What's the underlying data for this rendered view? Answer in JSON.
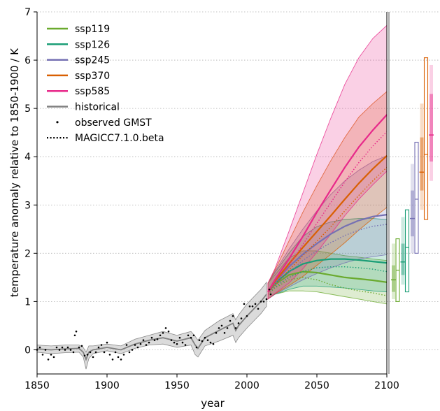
{
  "chart_data": {
    "type": "line",
    "xlabel": "year",
    "ylabel": "temperature anomaly relative to 1850-1900 / K",
    "xlim": [
      1850,
      2100
    ],
    "ylim": [
      -0.5,
      7
    ],
    "xticks": [
      "1850",
      "1900",
      "1950",
      "2000",
      "2050",
      "2100"
    ],
    "yticks": [
      "0",
      "1",
      "2",
      "3",
      "4",
      "5",
      "6",
      "7"
    ],
    "grid": "horizontal-dotted",
    "legend_position": "top-left",
    "legend": [
      {
        "label": "ssp119",
        "style": "line",
        "color": "#6aaa2e"
      },
      {
        "label": "ssp126",
        "style": "line",
        "color": "#1b9e77"
      },
      {
        "label": "ssp245",
        "style": "line",
        "color": "#7570b3"
      },
      {
        "label": "ssp370",
        "style": "line",
        "color": "#d95f02"
      },
      {
        "label": "ssp585",
        "style": "line",
        "color": "#e7298a"
      },
      {
        "label": "historical",
        "style": "line",
        "color": "#808080"
      },
      {
        "label": "observed GMST",
        "style": "dot",
        "color": "#000000"
      },
      {
        "label": "MAGICC7.1.0.beta",
        "style": "dotted",
        "color": "#000000"
      }
    ],
    "historical": {
      "color": "#808080",
      "x": [
        1850,
        1860,
        1870,
        1880,
        1883,
        1885,
        1887,
        1890,
        1900,
        1910,
        1920,
        1930,
        1940,
        1950,
        1960,
        1963,
        1965,
        1970,
        1980,
        1990,
        1992,
        1994,
        2000,
        2005,
        2010,
        2014
      ],
      "median": [
        0.02,
        0.0,
        0.02,
        0.03,
        -0.05,
        -0.2,
        -0.05,
        0.0,
        0.05,
        0.0,
        0.12,
        0.2,
        0.25,
        0.18,
        0.25,
        0.1,
        0.03,
        0.25,
        0.4,
        0.55,
        0.4,
        0.5,
        0.7,
        0.85,
        1.0,
        1.15
      ],
      "lower": [
        -0.05,
        -0.08,
        -0.06,
        -0.05,
        -0.15,
        -0.4,
        -0.18,
        -0.08,
        -0.02,
        -0.08,
        0.03,
        0.1,
        0.12,
        0.05,
        0.1,
        -0.1,
        -0.15,
        0.08,
        0.18,
        0.3,
        0.15,
        0.25,
        0.45,
        0.6,
        0.75,
        0.9
      ],
      "upper": [
        0.1,
        0.08,
        0.1,
        0.1,
        0.05,
        -0.05,
        0.08,
        0.08,
        0.12,
        0.08,
        0.22,
        0.3,
        0.38,
        0.3,
        0.38,
        0.28,
        0.2,
        0.4,
        0.6,
        0.75,
        0.62,
        0.72,
        0.95,
        1.1,
        1.25,
        1.4
      ]
    },
    "observed_gmst": {
      "x": [
        1850,
        1852,
        1854,
        1856,
        1858,
        1860,
        1862,
        1864,
        1866,
        1868,
        1870,
        1872,
        1874,
        1876,
        1877,
        1878,
        1880,
        1882,
        1884,
        1886,
        1888,
        1890,
        1892,
        1894,
        1896,
        1898,
        1900,
        1902,
        1904,
        1906,
        1908,
        1910,
        1912,
        1914,
        1916,
        1918,
        1920,
        1922,
        1924,
        1926,
        1928,
        1930,
        1932,
        1934,
        1936,
        1938,
        1940,
        1942,
        1944,
        1946,
        1948,
        1950,
        1952,
        1954,
        1956,
        1958,
        1960,
        1962,
        1964,
        1966,
        1968,
        1970,
        1972,
        1974,
        1976,
        1978,
        1980,
        1982,
        1984,
        1986,
        1988,
        1990,
        1992,
        1994,
        1996,
        1998,
        2000,
        2002,
        2004,
        2006,
        2008,
        2010,
        2012,
        2014,
        2016,
        2017
      ],
      "y": [
        0.0,
        0.05,
        -0.1,
        0.0,
        -0.2,
        -0.1,
        -0.15,
        0.05,
        0.0,
        0.05,
        0.0,
        0.05,
        0.0,
        -0.05,
        0.3,
        0.38,
        0.05,
        0.08,
        -0.12,
        -0.1,
        -0.05,
        -0.15,
        -0.05,
        0.05,
        0.1,
        -0.05,
        0.15,
        -0.1,
        -0.2,
        -0.05,
        -0.15,
        -0.2,
        -0.1,
        0.1,
        -0.05,
        0.0,
        0.1,
        0.05,
        0.12,
        0.2,
        0.1,
        0.15,
        0.25,
        0.2,
        0.22,
        0.3,
        0.35,
        0.45,
        0.38,
        0.2,
        0.15,
        0.12,
        0.25,
        0.15,
        0.1,
        0.3,
        0.25,
        0.3,
        0.05,
        0.2,
        0.18,
        0.25,
        0.2,
        0.15,
        0.12,
        0.35,
        0.45,
        0.5,
        0.35,
        0.45,
        0.6,
        0.7,
        0.45,
        0.55,
        0.65,
        0.95,
        0.7,
        0.9,
        0.9,
        0.95,
        0.85,
        1.0,
        1.0,
        1.05,
        1.25,
        1.15
      ]
    },
    "scenarios_x": [
      2015,
      2020,
      2030,
      2040,
      2050,
      2060,
      2070,
      2080,
      2090,
      2100
    ],
    "series": [
      {
        "name": "ssp119",
        "color": "#6aaa2e",
        "median": [
          1.2,
          1.35,
          1.55,
          1.62,
          1.6,
          1.55,
          1.5,
          1.47,
          1.44,
          1.4
        ],
        "lower": [
          1.05,
          1.15,
          1.22,
          1.22,
          1.2,
          1.15,
          1.1,
          1.05,
          1.0,
          0.95
        ],
        "upper": [
          1.38,
          1.55,
          1.9,
          2.05,
          2.05,
          2.0,
          1.95,
          1.92,
          1.88,
          1.85
        ],
        "magicc": [
          1.15,
          1.28,
          1.45,
          1.5,
          1.45,
          1.35,
          1.28,
          1.22,
          1.18,
          1.12
        ]
      },
      {
        "name": "ssp126",
        "color": "#1b9e77",
        "median": [
          1.2,
          1.38,
          1.62,
          1.78,
          1.85,
          1.88,
          1.88,
          1.86,
          1.83,
          1.8
        ],
        "lower": [
          1.05,
          1.15,
          1.25,
          1.32,
          1.32,
          1.3,
          1.28,
          1.25,
          1.22,
          1.2
        ],
        "upper": [
          1.38,
          1.6,
          2.0,
          2.35,
          2.55,
          2.65,
          2.7,
          2.72,
          2.72,
          2.7
        ],
        "magicc": [
          1.15,
          1.3,
          1.5,
          1.62,
          1.7,
          1.72,
          1.72,
          1.7,
          1.67,
          1.62
        ]
      },
      {
        "name": "ssp245",
        "color": "#7570b3",
        "median": [
          1.2,
          1.4,
          1.72,
          1.98,
          2.2,
          2.4,
          2.56,
          2.68,
          2.76,
          2.8
        ],
        "lower": [
          1.05,
          1.15,
          1.3,
          1.45,
          1.58,
          1.7,
          1.8,
          1.88,
          1.93,
          1.97
        ],
        "upper": [
          1.38,
          1.62,
          2.08,
          2.5,
          2.88,
          3.22,
          3.5,
          3.72,
          3.9,
          4.02
        ],
        "magicc": [
          1.15,
          1.32,
          1.6,
          1.85,
          2.05,
          2.22,
          2.37,
          2.48,
          2.56,
          2.6
        ]
      },
      {
        "name": "ssp370",
        "color": "#d95f02",
        "median": [
          1.2,
          1.42,
          1.78,
          2.12,
          2.45,
          2.78,
          3.12,
          3.45,
          3.75,
          4.02
        ],
        "lower": [
          1.05,
          1.16,
          1.33,
          1.52,
          1.75,
          1.98,
          2.22,
          2.48,
          2.72,
          2.95
        ],
        "upper": [
          1.38,
          1.65,
          2.25,
          2.85,
          3.4,
          3.92,
          4.4,
          4.82,
          5.1,
          5.35
        ],
        "magicc": [
          1.15,
          1.33,
          1.65,
          1.95,
          2.25,
          2.55,
          2.88,
          3.2,
          3.5,
          3.78
        ]
      },
      {
        "name": "ssp585",
        "color": "#e7298a",
        "median": [
          1.2,
          1.45,
          1.88,
          2.35,
          2.85,
          3.32,
          3.78,
          4.2,
          4.55,
          4.87
        ],
        "lower": [
          1.05,
          1.17,
          1.38,
          1.68,
          2.02,
          2.4,
          2.78,
          3.12,
          3.42,
          3.7
        ],
        "upper": [
          1.38,
          1.68,
          2.45,
          3.25,
          4.05,
          4.8,
          5.5,
          6.05,
          6.45,
          6.72
        ],
        "magicc": [
          1.15,
          1.35,
          1.75,
          2.18,
          2.62,
          3.05,
          3.48,
          3.88,
          4.22,
          4.52
        ]
      }
    ],
    "range_bars": [
      {
        "name": "ssp119",
        "color": "#6aaa2e",
        "emulator": {
          "whisker_low": 1.05,
          "box_low": 1.2,
          "median": 1.45,
          "box_high": 1.75,
          "whisker_high": 2.2
        },
        "assessed": {
          "low": 1.0,
          "median": 1.65,
          "high": 2.3
        }
      },
      {
        "name": "ssp126",
        "color": "#1b9e77",
        "emulator": {
          "whisker_low": 1.35,
          "box_low": 1.55,
          "median": 1.82,
          "box_high": 2.2,
          "whisker_high": 2.75
        },
        "assessed": {
          "low": 1.2,
          "median": 2.12,
          "high": 2.9
        }
      },
      {
        "name": "ssp245",
        "color": "#7570b3",
        "emulator": {
          "whisker_low": 2.0,
          "box_low": 2.35,
          "median": 2.72,
          "box_high": 3.3,
          "whisker_high": 3.85
        },
        "assessed": {
          "low": 2.0,
          "median": 3.12,
          "high": 4.3
        }
      },
      {
        "name": "ssp370",
        "color": "#d95f02",
        "emulator": {
          "whisker_low": 2.9,
          "box_low": 3.3,
          "median": 3.68,
          "box_high": 4.4,
          "whisker_high": 5.1
        },
        "assessed": {
          "low": 2.7,
          "median": 4.05,
          "high": 6.05
        }
      },
      {
        "name": "ssp585",
        "color": "#e7298a",
        "emulator": {
          "whisker_low": 3.5,
          "box_low": 3.9,
          "median": 4.45,
          "box_high": 5.3,
          "whisker_high": 5.9
        },
        "assessed": null
      }
    ]
  }
}
